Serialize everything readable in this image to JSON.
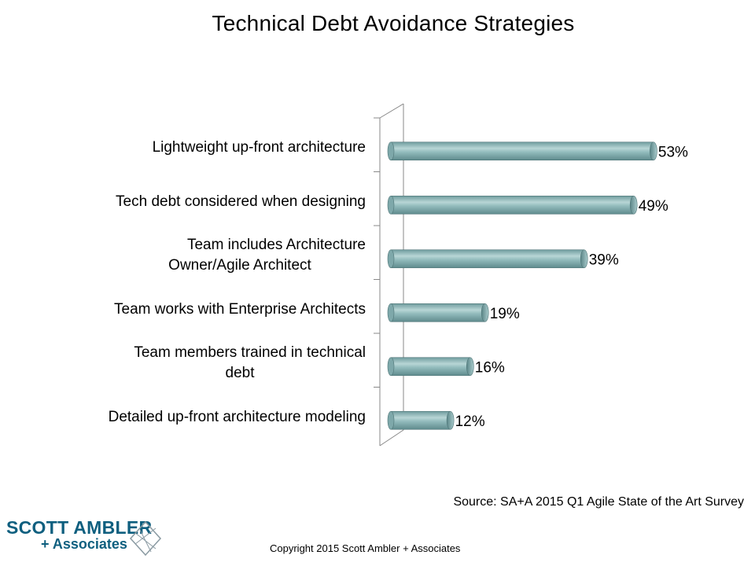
{
  "chart_data": {
    "type": "bar",
    "orientation": "horizontal",
    "title": "Technical Debt Avoidance Strategies",
    "categories": [
      [
        "Lightweight up-front architecture"
      ],
      [
        "Tech debt considered when designing"
      ],
      [
        "Team includes Architecture",
        "Owner/Agile Architect"
      ],
      [
        "Team works with Enterprise Architects"
      ],
      [
        "Team members trained in technical",
        "debt"
      ],
      [
        "Detailed up-front architecture modeling"
      ]
    ],
    "values": [
      53,
      49,
      39,
      19,
      16,
      12
    ],
    "value_labels": [
      "53%",
      "49%",
      "39%",
      "19%",
      "16%",
      "12%"
    ],
    "xlim": [
      0,
      60
    ],
    "grid": false,
    "legend": "none",
    "bar_color": "#8fb8b9"
  },
  "source": "Source: SA+A 2015 Q1 Agile State of the Art Survey",
  "copyright": "Copyright 2015 Scott Ambler + Associates",
  "logo": {
    "line1": "SCOTT AMBLER",
    "line2": "+ Associates",
    "color": "#0f5f7f"
  }
}
